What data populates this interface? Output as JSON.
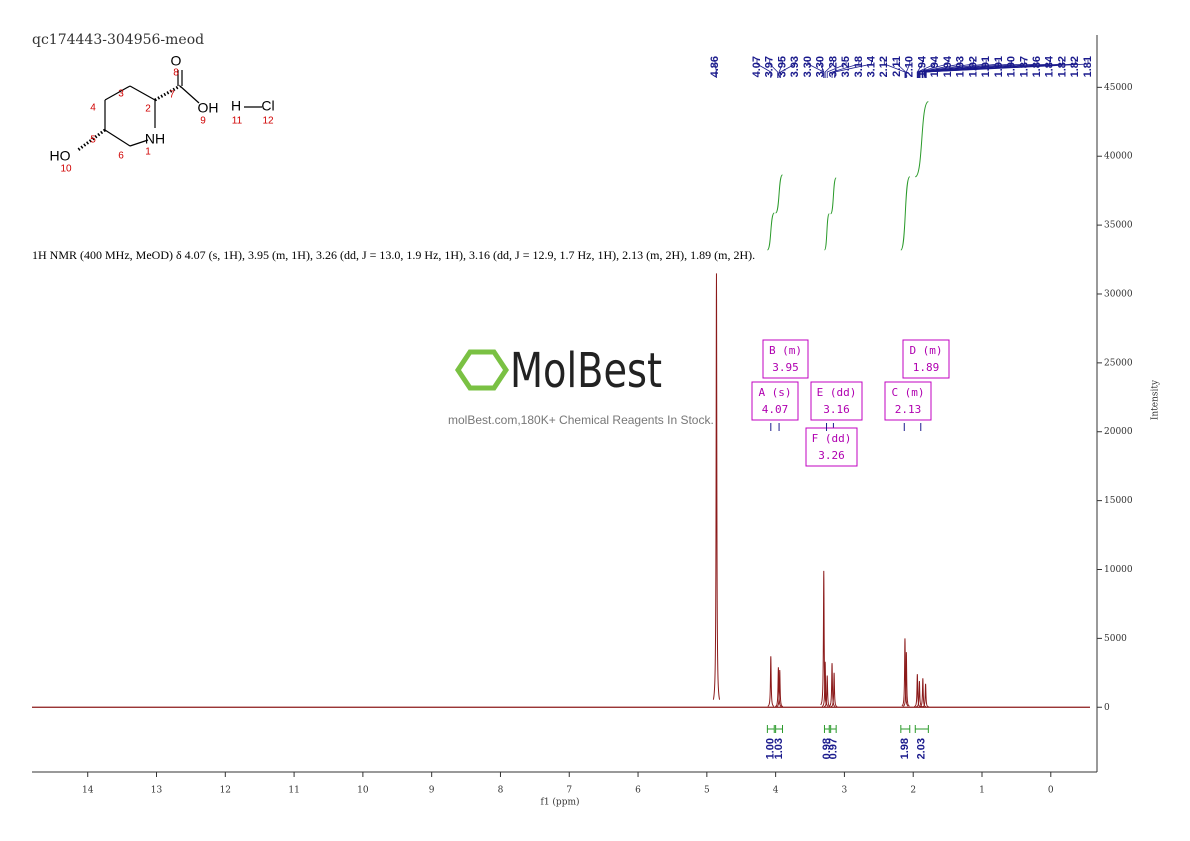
{
  "chart_data": {
    "type": "nmr",
    "title": "qc174443-304956-meod",
    "xlabel": "f1 (ppm)",
    "ylabel": "Intensity",
    "description": "1H NMR (400 MHz, MeOD) δ 4.07 (s, 1H), 3.95 (m, 1H), 3.26 (dd, J = 13.0, 1.9 Hz, 1H), 3.16 (dd, J = 12.9, 1.7 Hz, 1H), 2.13 (m, 2H), 1.89 (m, 2H).",
    "xlim": [
      14.81,
      -0.57
    ],
    "xticks": [
      14,
      13,
      12,
      11,
      10,
      9,
      8,
      7,
      6,
      5,
      4,
      3,
      2,
      1,
      0
    ],
    "ylim": [
      -4700,
      48800
    ],
    "yticks": [
      0,
      5000,
      10000,
      15000,
      20000,
      25000,
      30000,
      35000,
      40000,
      45000
    ],
    "color": "#8b1a1a",
    "peaks": {
      "x": [
        4.86,
        4.07,
        3.96,
        3.94,
        3.3,
        3.28,
        3.25,
        3.18,
        3.15,
        2.12,
        2.1,
        1.94,
        1.91,
        1.86,
        1.82
      ],
      "values": [
        31500,
        3700,
        2900,
        2700,
        9900,
        3300,
        2300,
        3200,
        2500,
        5000,
        4000,
        2400,
        1900,
        2100,
        1700
      ]
    },
    "peak_labels": [
      4.86,
      4.07,
      3.97,
      3.95,
      3.93,
      {
        "value": 3.3,
        "label": "3.30"
      },
      {
        "value": 3.3,
        "label": "3.30"
      },
      3.28,
      3.25,
      3.18,
      3.14,
      2.12,
      2.11,
      {
        "value": 2.1,
        "label": "2.10"
      },
      1.94,
      1.94,
      1.94,
      1.93,
      1.92,
      1.91,
      1.91,
      {
        "value": 1.9,
        "label": "1.90"
      },
      1.87,
      1.86,
      1.84,
      1.82,
      1.82,
      1.81
    ],
    "integrals": [
      {
        "value": 1,
        "label": "1.00",
        "from": 4.12,
        "to": 4.02
      },
      {
        "value": 1.03,
        "from": 4.0,
        "to": 3.9
      },
      {
        "value": 0.98,
        "from": 3.29,
        "to": 3.22
      },
      {
        "value": 0.97,
        "from": 3.2,
        "to": 3.12
      },
      {
        "value": 1.98,
        "from": 2.18,
        "to": 2.05
      },
      {
        "value": 2.03,
        "from": 1.97,
        "to": 1.78
      }
    ],
    "multiplets": [
      {
        "label": "B (m)",
        "shift": 3.95
      },
      {
        "label": "A (s)",
        "shift": 4.07
      },
      {
        "label": "E (dd)",
        "shift": 3.16
      },
      {
        "label": "F (dd)",
        "shift": 3.26
      },
      {
        "label": "C (m)",
        "shift": 2.13
      },
      {
        "label": "D (m)",
        "shift": 1.89
      }
    ],
    "watermark": {
      "logo": "MolBest",
      "slogan": "molBest.com,180K+ Chemical Reagents In Stock."
    },
    "structure": {
      "atoms": [
        "O",
        "OH",
        "NH",
        "HO",
        "H",
        "Cl"
      ],
      "numbers": [
        "1",
        "2",
        "3",
        "4",
        "5",
        "6",
        "7",
        "8",
        "9",
        "10",
        "11",
        "12"
      ]
    }
  }
}
